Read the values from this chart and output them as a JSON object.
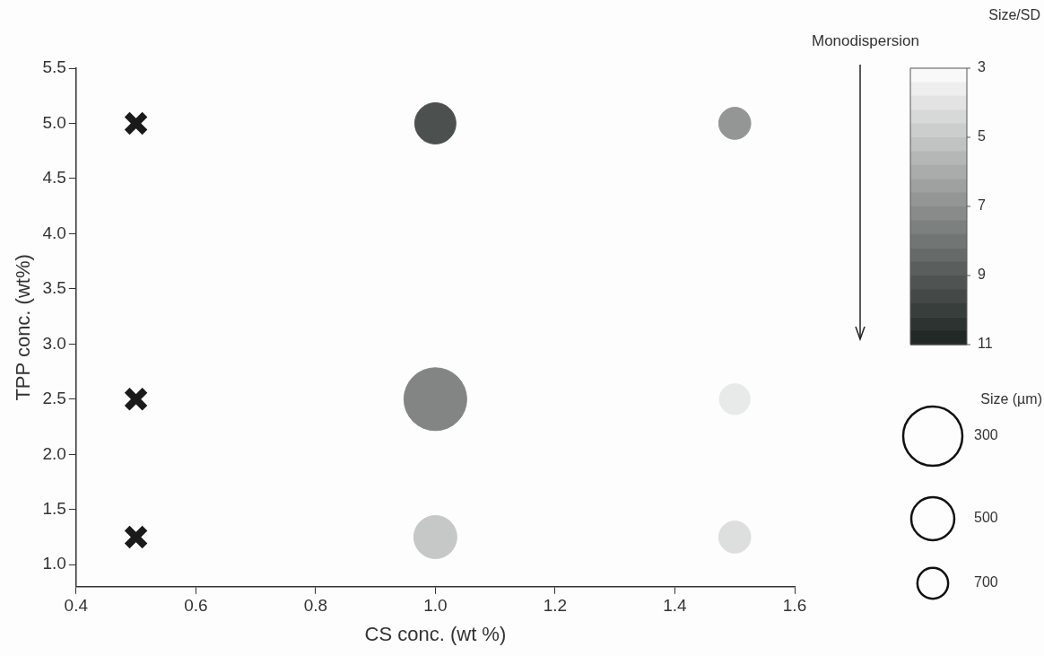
{
  "chart_data": {
    "type": "bubble",
    "xlabel": "CS conc. (wt %)",
    "ylabel": "TPP conc. (wt%)",
    "clabel": "Size/SD",
    "xlim": [
      0.4,
      1.6
    ],
    "xticks": [
      {
        "value": 0.4,
        "label": "0.4"
      },
      {
        "value": 0.6,
        "label": "0.6"
      },
      {
        "value": 0.8,
        "label": "0.8"
      },
      {
        "value": 1.0,
        "label": "1.0"
      },
      {
        "value": 1.2,
        "label": "1.2"
      },
      {
        "value": 1.4,
        "label": "1.4"
      },
      {
        "value": 1.6,
        "label": "1.6"
      }
    ],
    "ylim": [
      0.8,
      5.5
    ],
    "yticks": [
      {
        "value": 1.0,
        "label": "1.0"
      },
      {
        "value": 1.5,
        "label": "1.5"
      },
      {
        "value": 2.0,
        "label": "2.0"
      },
      {
        "value": 2.5,
        "label": "2.5"
      },
      {
        "value": 3.0,
        "label": "3.0"
      },
      {
        "value": 3.5,
        "label": "3.5"
      },
      {
        "value": 4.0,
        "label": "4.0"
      },
      {
        "value": 4.5,
        "label": "4.5"
      },
      {
        "value": 5.0,
        "label": "5.0"
      },
      {
        "value": 5.5,
        "label": "5.5"
      }
    ],
    "clim": [
      3,
      11
    ],
    "cticks": [
      3,
      5,
      7,
      9,
      11
    ],
    "grid": false,
    "series": [
      {
        "type": "scatter",
        "marker": "cross",
        "color": "#1a1a1a",
        "x": [
          0.5,
          0.5,
          0.5
        ],
        "values": [
          5.0,
          2.5,
          1.25
        ]
      },
      {
        "marker": "circle",
        "x": [
          1.0,
          1.5,
          1.0,
          1.5,
          1.0,
          1.5
        ],
        "values": [
          5.0,
          5.0,
          2.5,
          2.5,
          1.25,
          1.25
        ],
        "sizes": [
          0.43,
          0.26,
          1,
          0.24,
          0.47,
          0.26
        ],
        "colors": [
          "#4c514f",
          "#939695",
          "#828584",
          "#e8e9e9",
          "#c6c8c7",
          "#dddede"
        ],
        "cvalues": [
          9.3,
          6.8,
          7.4,
          3.8,
          5.0,
          4.2
        ]
      }
    ],
    "size_legend": [
      {
        "value": 0.89,
        "label": "300"
      },
      {
        "value": 0.47,
        "label": "500"
      },
      {
        "value": 0.24,
        "label": "700"
      }
    ],
    "annotations": [
      "Monodispersion",
      "Size (µm)"
    ]
  }
}
